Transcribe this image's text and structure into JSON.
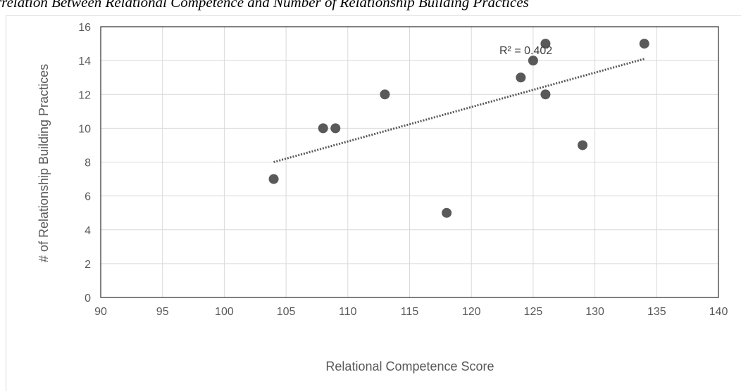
{
  "chart_data": {
    "type": "scatter",
    "title": "rrelation Between Relational Competence and Number of Relationship Building Practices",
    "xlabel": "Relational Competence Score",
    "ylabel": "# of Relationship Building Practices",
    "xlim": [
      90,
      140
    ],
    "ylim": [
      0,
      16
    ],
    "xticks": [
      90,
      95,
      100,
      105,
      110,
      115,
      120,
      125,
      130,
      135,
      140
    ],
    "yticks": [
      0,
      2,
      4,
      6,
      8,
      10,
      12,
      14,
      16
    ],
    "grid": true,
    "legend": "none",
    "series": [
      {
        "points": [
          {
            "x": 104,
            "y": 7
          },
          {
            "x": 108,
            "y": 10
          },
          {
            "x": 109,
            "y": 10
          },
          {
            "x": 113,
            "y": 12
          },
          {
            "x": 118,
            "y": 5
          },
          {
            "x": 124,
            "y": 13
          },
          {
            "x": 125,
            "y": 14
          },
          {
            "x": 126,
            "y": 15
          },
          {
            "x": 126,
            "y": 12
          },
          {
            "x": 129,
            "y": 9
          },
          {
            "x": 134,
            "y": 15
          }
        ]
      }
    ],
    "trendline": {
      "type": "linear",
      "from": {
        "x": 104,
        "y": 8.0
      },
      "to": {
        "x": 134,
        "y": 14.1
      },
      "label": "R² = 0.402"
    },
    "colors": {
      "marker": "#595959",
      "trendline": "#595959",
      "grid": "#d9d9d9",
      "axis_text": "#595959"
    }
  }
}
